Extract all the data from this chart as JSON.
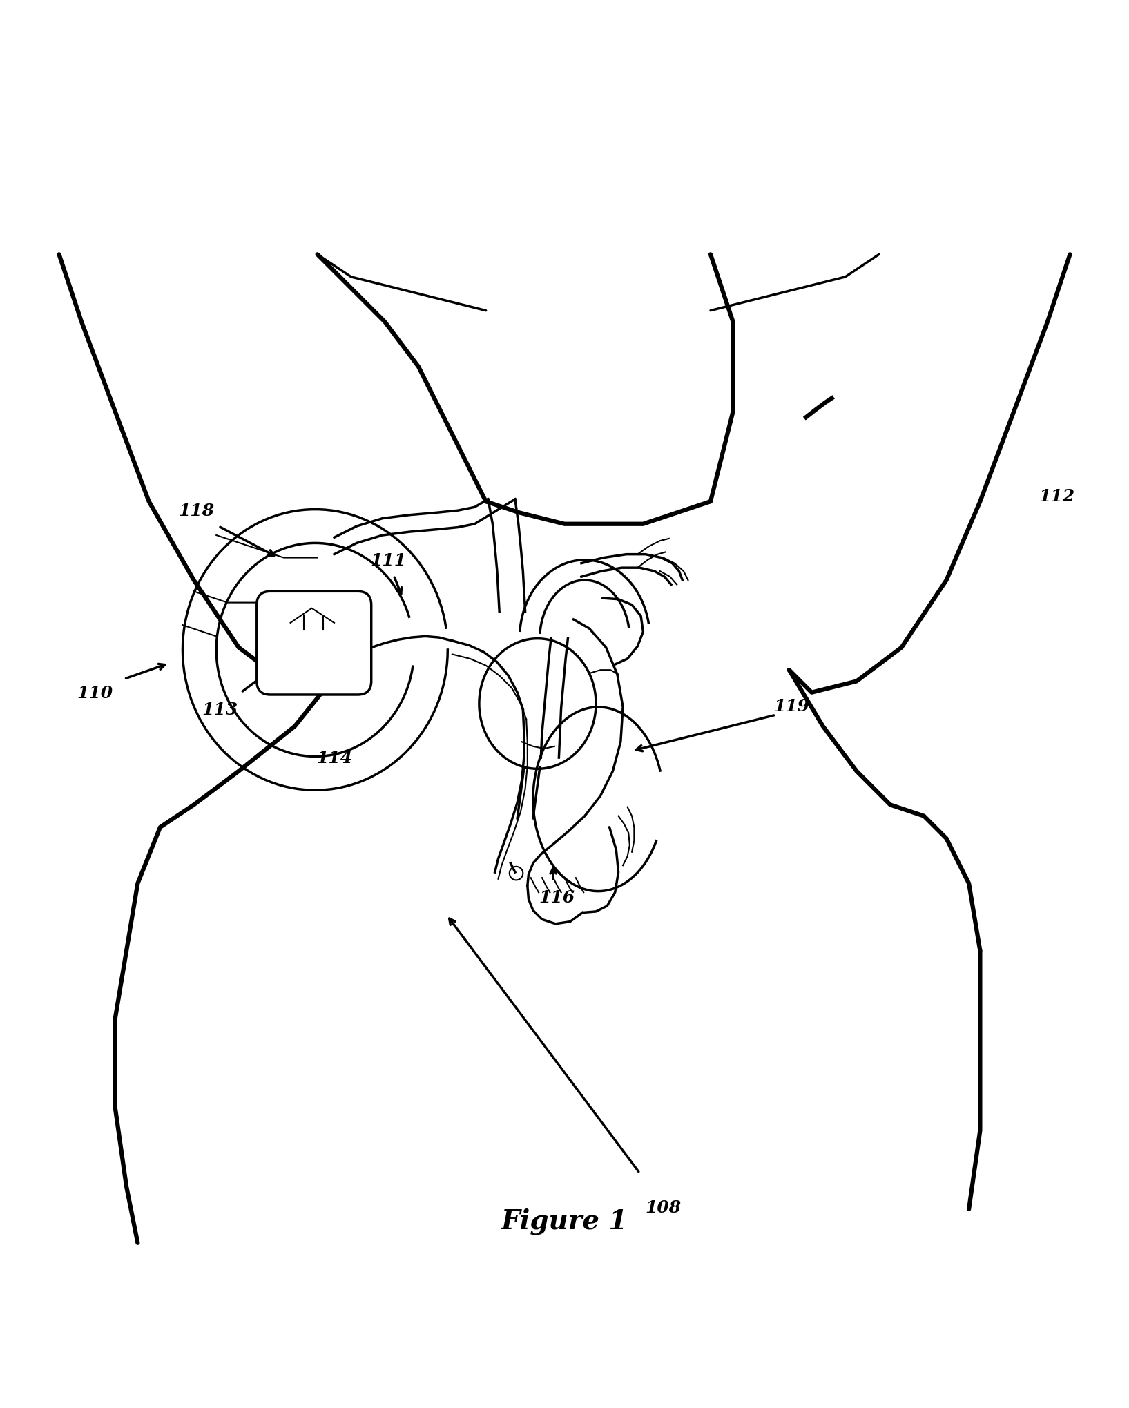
{
  "figure_label": "Figure 1",
  "figure_label_fontsize": 28,
  "figure_label_fontstyle": "italic",
  "figure_label_fontweight": "bold",
  "background_color": "#ffffff",
  "line_color": "#000000",
  "label_fontsize": 18,
  "figsize": [
    16.35,
    20.4
  ],
  "dpi": 100
}
